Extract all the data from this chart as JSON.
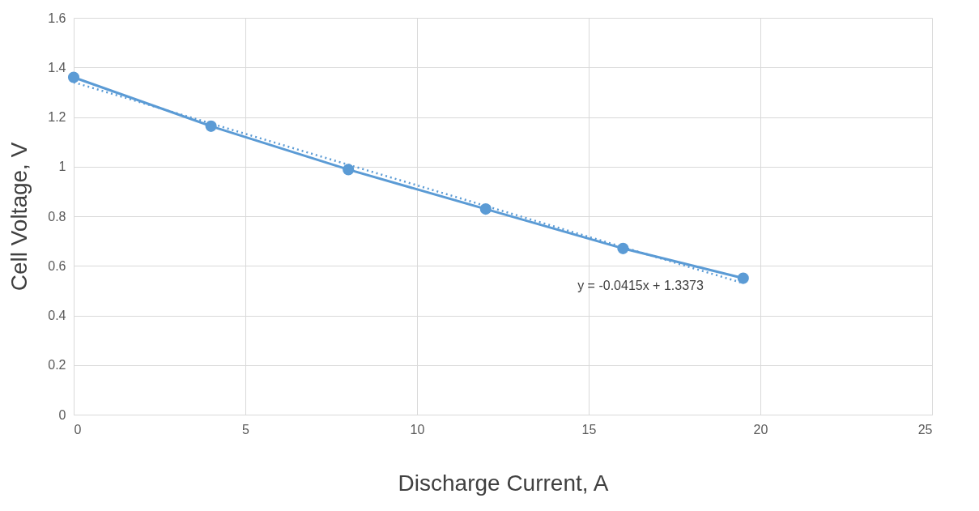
{
  "chart_data": {
    "type": "line",
    "xlabel": "Discharge Current, A",
    "ylabel": "Cell Voltage, V",
    "xlim": [
      0,
      25
    ],
    "xticks": [
      0,
      5,
      10,
      15,
      20,
      25
    ],
    "ylim": [
      0,
      1.6
    ],
    "yticks": [
      0,
      0.2,
      0.4,
      0.6,
      0.8,
      1,
      1.2,
      1.4,
      1.6
    ],
    "grid": true,
    "series": [
      {
        "type": "line",
        "color": "#5b9bd5",
        "marker": "circle",
        "line_style": "solid",
        "x": [
          0,
          4,
          8,
          12,
          16,
          19.5
        ],
        "values": [
          1.36,
          1.163,
          0.988,
          0.829,
          0.67,
          0.55
        ]
      },
      {
        "type": "line",
        "color": "#5b9bd5",
        "marker": "none",
        "line_style": "dotted",
        "x": [
          0,
          19.5
        ],
        "values": [
          1.34,
          0.53
        ]
      }
    ],
    "annotations": [
      "y = -0.0415x + 1.3373"
    ]
  }
}
